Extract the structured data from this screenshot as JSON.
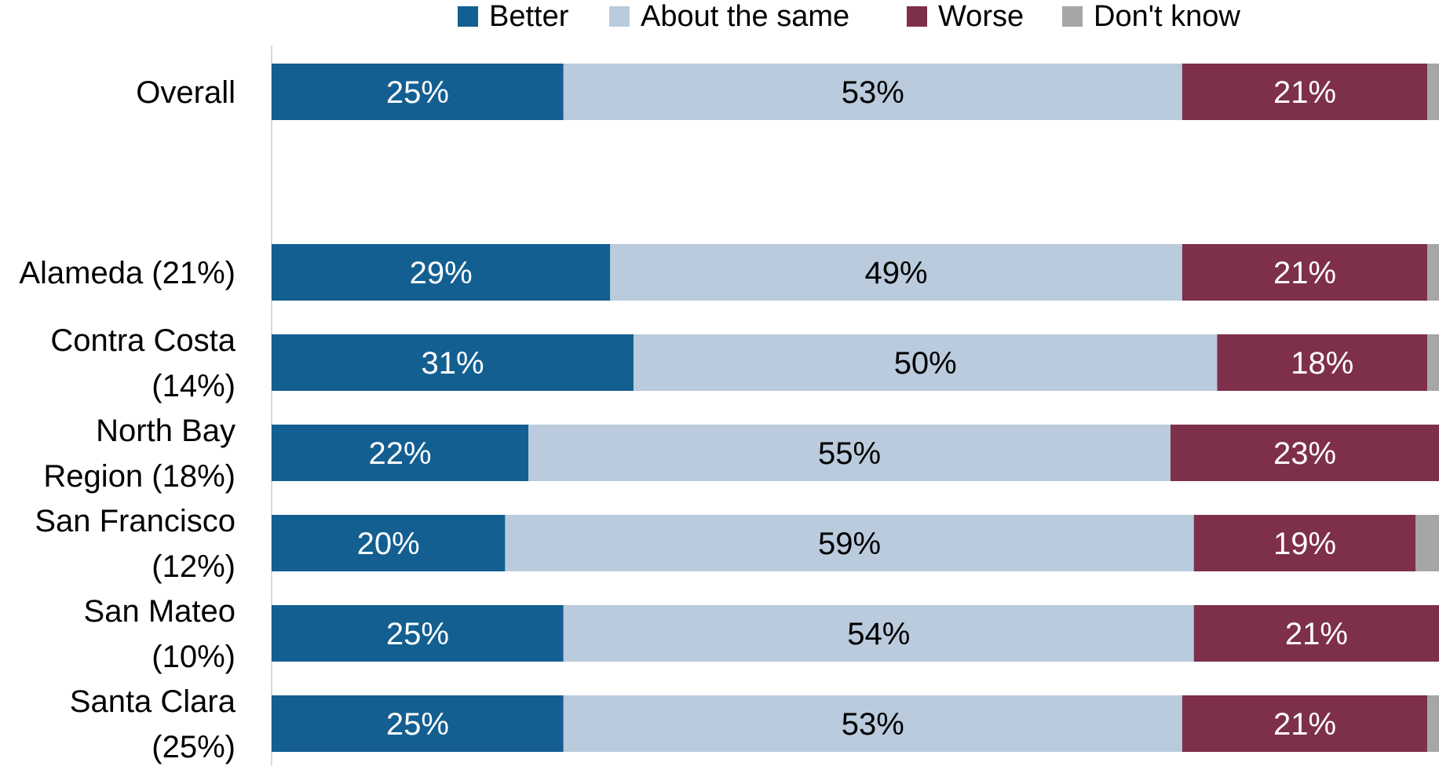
{
  "chart_data": {
    "type": "bar",
    "orientation": "horizontal",
    "stacked": true,
    "percent_stacked": true,
    "legend_position": "top",
    "grid": false,
    "xlim": [
      0,
      100
    ],
    "categories": [
      [
        "Overall"
      ],
      [
        "Alameda (21%)"
      ],
      [
        "Contra Costa",
        "(14%)"
      ],
      [
        "North Bay",
        "Region (18%)"
      ],
      [
        "San Francisco",
        "(12%)"
      ],
      [
        "San Mateo",
        "(10%)"
      ],
      [
        "Santa Clara",
        "(25%)"
      ]
    ],
    "series": [
      {
        "name": "Better",
        "color": "#145f91",
        "values": [
          25,
          29,
          31,
          22,
          20,
          25,
          25
        ],
        "labels": [
          "25%",
          "29%",
          "31%",
          "22%",
          "20%",
          "25%",
          "25%"
        ],
        "label_color": "#ffffff"
      },
      {
        "name": "About the same",
        "color": "#b9cbdc",
        "values": [
          53,
          49,
          50,
          55,
          59,
          54,
          53
        ],
        "labels": [
          "53%",
          "49%",
          "50%",
          "55%",
          "59%",
          "54%",
          "53%"
        ],
        "label_color": "#000000"
      },
      {
        "name": "Worse",
        "color": "#7e2f4c",
        "values": [
          21,
          21,
          18,
          23,
          19,
          21,
          21
        ],
        "labels": [
          "21%",
          "21%",
          "18%",
          "23%",
          "19%",
          "21%",
          "21%"
        ],
        "label_color": "#ffffff"
      },
      {
        "name": "Don't know",
        "color": "#a6a6a6",
        "values": [
          1,
          1,
          1,
          0,
          2,
          0,
          1
        ],
        "labels": [
          "",
          "",
          "",
          "",
          "",
          "",
          ""
        ],
        "label_color": "#ffffff"
      }
    ]
  }
}
